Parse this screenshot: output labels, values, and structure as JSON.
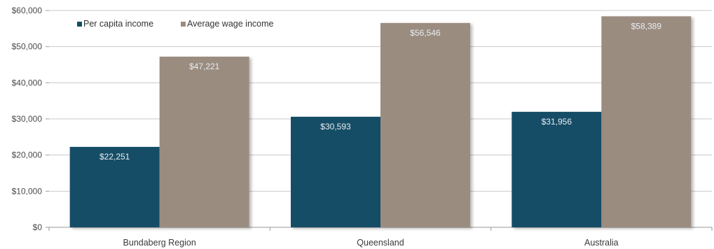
{
  "chart_data": {
    "type": "bar",
    "categories": [
      "Bundaberg Region",
      "Queensland",
      "Australia"
    ],
    "series": [
      {
        "name": "Per capita income",
        "values": [
          22251,
          30593,
          31956
        ],
        "labels": [
          "$22,251",
          "$30,593",
          "$31,956"
        ],
        "color": "#124e66"
      },
      {
        "name": "Average wage income",
        "values": [
          47221,
          56546,
          58389
        ],
        "labels": [
          "$47,221",
          "$56,546",
          "$58,389"
        ],
        "color": "#9b8c80"
      }
    ],
    "yticks": [
      "$0",
      "$10,000",
      "$20,000",
      "$30,000",
      "$40,000",
      "$50,000",
      "$60,000"
    ],
    "ytick_values": [
      0,
      10000,
      20000,
      30000,
      40000,
      50000,
      60000
    ],
    "ylim": [
      0,
      60000
    ],
    "grid": true,
    "legend": "top-left",
    "title": "",
    "xlabel": "",
    "ylabel": ""
  }
}
